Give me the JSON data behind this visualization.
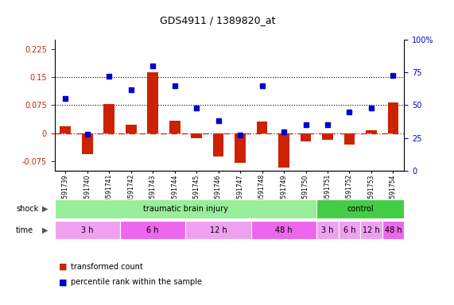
{
  "title": "GDS4911 / 1389820_at",
  "samples": [
    "GSM591739",
    "GSM591740",
    "GSM591741",
    "GSM591742",
    "GSM591743",
    "GSM591744",
    "GSM591745",
    "GSM591746",
    "GSM591747",
    "GSM591748",
    "GSM591749",
    "GSM591750",
    "GSM591751",
    "GSM591752",
    "GSM591753",
    "GSM591754"
  ],
  "bar_values": [
    0.018,
    -0.055,
    0.078,
    0.022,
    0.163,
    0.033,
    -0.012,
    -0.062,
    -0.078,
    0.032,
    -0.092,
    -0.022,
    -0.018,
    -0.03,
    0.008,
    0.082
  ],
  "dot_values": [
    55,
    28,
    72,
    62,
    80,
    65,
    48,
    38,
    27,
    65,
    30,
    35,
    35,
    45,
    48,
    73
  ],
  "ylim_left": [
    -0.1,
    0.25
  ],
  "ylim_right": [
    0,
    100
  ],
  "yticks_left": [
    -0.075,
    0.0,
    0.075,
    0.15,
    0.225
  ],
  "ytick_labels_left": [
    "-0.075",
    "0",
    "0.075",
    "0.15",
    "0.225"
  ],
  "yticks_right": [
    0,
    25,
    50,
    75,
    100
  ],
  "ytick_labels_right": [
    "0",
    "25",
    "50",
    "75",
    "100%"
  ],
  "hlines": [
    0.075,
    0.15
  ],
  "zero_line": 0.0,
  "bar_color": "#cc2200",
  "dot_color": "#0000cc",
  "shock_groups": [
    {
      "label": "traumatic brain injury",
      "start": 0,
      "end": 12,
      "color": "#99ee99"
    },
    {
      "label": "control",
      "start": 12,
      "end": 16,
      "color": "#44cc44"
    }
  ],
  "time_groups": [
    {
      "label": "3 h",
      "start": 0,
      "end": 3,
      "color": "#f0a0f0"
    },
    {
      "label": "6 h",
      "start": 3,
      "end": 6,
      "color": "#ee66ee"
    },
    {
      "label": "12 h",
      "start": 6,
      "end": 9,
      "color": "#f0a0f0"
    },
    {
      "label": "48 h",
      "start": 9,
      "end": 12,
      "color": "#ee66ee"
    },
    {
      "label": "3 h",
      "start": 12,
      "end": 13,
      "color": "#f0a0f0"
    },
    {
      "label": "6 h",
      "start": 13,
      "end": 14,
      "color": "#f0a0f0"
    },
    {
      "label": "12 h",
      "start": 14,
      "end": 15,
      "color": "#f0a0f0"
    },
    {
      "label": "48 h",
      "start": 15,
      "end": 16,
      "color": "#ee66ee"
    }
  ],
  "shock_label": "shock",
  "time_label": "time",
  "legend_bar_label": "transformed count",
  "legend_dot_label": "percentile rank within the sample",
  "bg_color": "#ffffff",
  "axis_label_color_left": "#cc2200",
  "axis_label_color_right": "#0000cc",
  "bar_width": 0.5
}
